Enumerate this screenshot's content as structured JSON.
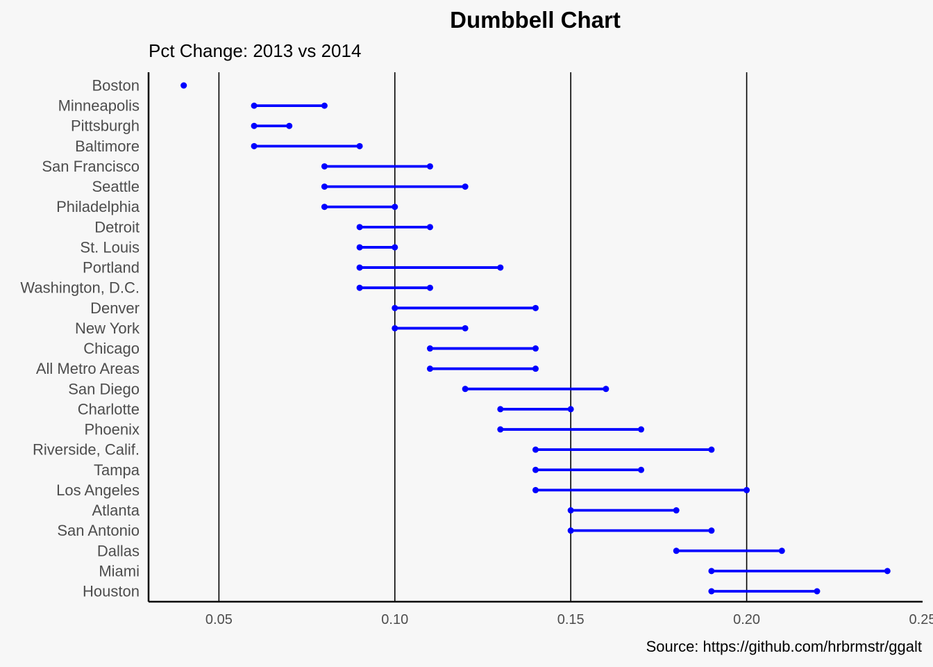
{
  "chart_data": {
    "type": "dumbbell",
    "title": "Dumbbell Chart",
    "subtitle": "Pct Change: 2013 vs 2014",
    "caption": "Source: https://github.com/hrbrmstr/ggalt",
    "xlabel": "",
    "ylabel": "",
    "xlim": [
      0.03,
      0.25
    ],
    "x_ticks": [
      0.05,
      0.1,
      0.15,
      0.2,
      0.25
    ],
    "x_tick_labels": [
      "0.05",
      "0.10",
      "0.15",
      "0.20",
      "0.25"
    ],
    "grid": "vertical-major",
    "colors": {
      "series": "#0000ff",
      "grid": "#000000",
      "axis": "#000000",
      "background": "#f7f7f7"
    },
    "categories": [
      "Boston",
      "Minneapolis",
      "Pittsburgh",
      "Baltimore",
      "San Francisco",
      "Seattle",
      "Philadelphia",
      "Detroit",
      "St. Louis",
      "Portland",
      "Washington, D.C.",
      "Denver",
      "New York",
      "Chicago",
      "All Metro Areas",
      "San Diego",
      "Charlotte",
      "Phoenix",
      "Riverside, Calif.",
      "Tampa",
      "Los Angeles",
      "Atlanta",
      "San Antonio",
      "Dallas",
      "Miami",
      "Houston"
    ],
    "pct_2013": [
      0.04,
      0.06,
      0.06,
      0.06,
      0.08,
      0.08,
      0.08,
      0.09,
      0.09,
      0.09,
      0.09,
      0.1,
      0.1,
      0.11,
      0.11,
      0.12,
      0.13,
      0.13,
      0.14,
      0.14,
      0.14,
      0.15,
      0.15,
      0.18,
      0.19,
      0.19
    ],
    "pct_2014": [
      0.04,
      0.08,
      0.07,
      0.09,
      0.11,
      0.12,
      0.1,
      0.11,
      0.1,
      0.13,
      0.11,
      0.14,
      0.12,
      0.14,
      0.14,
      0.16,
      0.15,
      0.17,
      0.19,
      0.17,
      0.2,
      0.18,
      0.19,
      0.21,
      0.24,
      0.22
    ]
  }
}
